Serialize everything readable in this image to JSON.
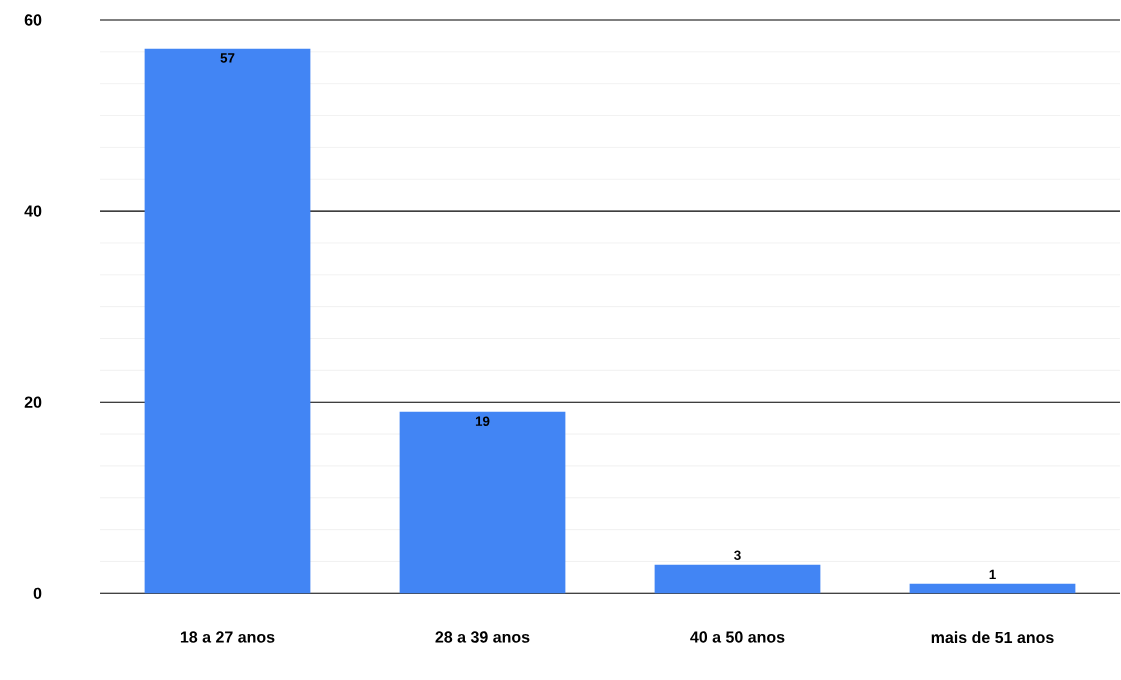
{
  "chart_data": {
    "type": "bar",
    "categories": [
      "18 a 27 anos",
      "28 a 39 anos",
      "40 a 50 anos",
      "mais de 51 anos"
    ],
    "values": [
      57,
      19,
      3,
      1
    ],
    "color": "#4285f4",
    "ylim": [
      0,
      60
    ],
    "yticks": [
      0,
      20,
      40,
      60
    ],
    "grid": "y",
    "data_labels": true
  }
}
